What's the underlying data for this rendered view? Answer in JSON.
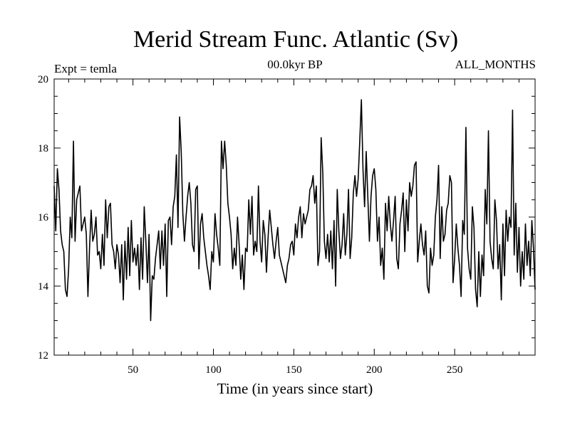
{
  "chart_data": {
    "type": "line",
    "title": "Merid Stream Func. Atlantic (Sv)",
    "subtitle_left": "Expt = temla",
    "subtitle_center": "00.0kyr BP",
    "subtitle_right": "ALL_MONTHS",
    "xlabel": "Time (in years since start)",
    "ylabel": "",
    "xlim": [
      1,
      300
    ],
    "ylim": [
      12,
      20
    ],
    "xticks": [
      50,
      100,
      150,
      200,
      250
    ],
    "yticks": [
      12,
      14,
      16,
      18,
      20
    ],
    "line_color": "#000000",
    "series": [
      {
        "name": "Merid Stream Func. Atlantic",
        "values": [
          16.9,
          15.6,
          17.4,
          16.8,
          15.6,
          15.2,
          15.0,
          13.9,
          13.7,
          14.5,
          16.0,
          15.4,
          18.2,
          15.3,
          16.5,
          16.7,
          16.9,
          15.6,
          15.8,
          16.0,
          15.5,
          13.7,
          15.1,
          16.2,
          15.3,
          15.5,
          16.0,
          14.9,
          15.0,
          14.5,
          15.5,
          14.6,
          16.5,
          15.4,
          16.3,
          16.4,
          15.2,
          15.0,
          14.5,
          15.2,
          14.9,
          14.1,
          15.2,
          13.6,
          15.3,
          14.2,
          15.7,
          14.3,
          15.9,
          14.7,
          15.1,
          14.6,
          15.2,
          13.9,
          15.4,
          14.2,
          16.3,
          15.3,
          14.1,
          15.5,
          13.0,
          14.3,
          14.2,
          14.8,
          15.2,
          15.6,
          14.5,
          15.6,
          14.6,
          15.8,
          13.7,
          15.9,
          16.0,
          15.2,
          16.3,
          16.6,
          17.8,
          15.7,
          18.9,
          17.9,
          16.1,
          15.3,
          16.0,
          16.6,
          17.0,
          16.4,
          15.2,
          15.0,
          16.8,
          16.9,
          14.5,
          15.8,
          16.1,
          15.4,
          15.0,
          14.6,
          14.3,
          13.9,
          15.0,
          14.7,
          16.1,
          15.5,
          15.1,
          14.6,
          18.2,
          17.4,
          18.2,
          17.5,
          16.4,
          16.0,
          15.5,
          14.5,
          15.1,
          14.6,
          16.0,
          15.2,
          14.2,
          14.9,
          13.9,
          15.1,
          15.0,
          16.5,
          15.5,
          16.6,
          14.9,
          15.3,
          15.0,
          16.9,
          15.3,
          14.7,
          15.9,
          15.5,
          14.4,
          15.4,
          16.2,
          15.7,
          15.2,
          14.8,
          15.3,
          15.7,
          14.9,
          14.7,
          14.5,
          14.3,
          14.1,
          14.6,
          14.8,
          15.2,
          15.3,
          14.9,
          15.8,
          15.4,
          16.0,
          16.3,
          15.4,
          16.1,
          15.8,
          16.0,
          16.2,
          16.8,
          16.9,
          17.2,
          16.4,
          16.9,
          14.6,
          15.0,
          18.3,
          17.3,
          15.3,
          14.8,
          15.5,
          14.7,
          15.6,
          14.5,
          15.9,
          14.0,
          16.8,
          15.6,
          14.8,
          15.2,
          16.1,
          14.9,
          15.5,
          16.8,
          14.8,
          15.4,
          16.7,
          17.2,
          16.6,
          17.1,
          18.2,
          19.4,
          17.4,
          16.3,
          17.9,
          16.6,
          15.3,
          16.6,
          17.2,
          17.4,
          16.8,
          15.3,
          16.0,
          14.6,
          15.1,
          14.2,
          16.4,
          15.6,
          16.6,
          15.8,
          15.3,
          15.9,
          16.6,
          14.8,
          14.5,
          15.8,
          16.2,
          16.7,
          15.0,
          16.5,
          15.6,
          17.0,
          16.6,
          16.9,
          17.5,
          17.6,
          14.7,
          15.3,
          15.8,
          15.2,
          14.9,
          15.6,
          14.0,
          13.8,
          15.1,
          14.6,
          14.9,
          16.0,
          16.5,
          17.5,
          14.8,
          16.3,
          15.3,
          15.5,
          16.2,
          16.4,
          17.2,
          17.0,
          14.1,
          14.8,
          15.8,
          15.1,
          14.6,
          13.7,
          15.9,
          15.5,
          18.6,
          15.1,
          14.5,
          14.2,
          16.3,
          15.7,
          13.9,
          13.4,
          15.0,
          13.7,
          14.9,
          14.3,
          16.8,
          15.8,
          18.5,
          15.3,
          14.8,
          14.5,
          16.5,
          15.9,
          14.5,
          15.2,
          13.6,
          15.8,
          14.3,
          16.2,
          15.3,
          16.0,
          15.7,
          19.1,
          14.9,
          16.4,
          14.4,
          15.7,
          14.0,
          15.0,
          14.2,
          15.8,
          14.6,
          15.3,
          14.3,
          15.9,
          15.1,
          13.9
        ]
      }
    ]
  }
}
